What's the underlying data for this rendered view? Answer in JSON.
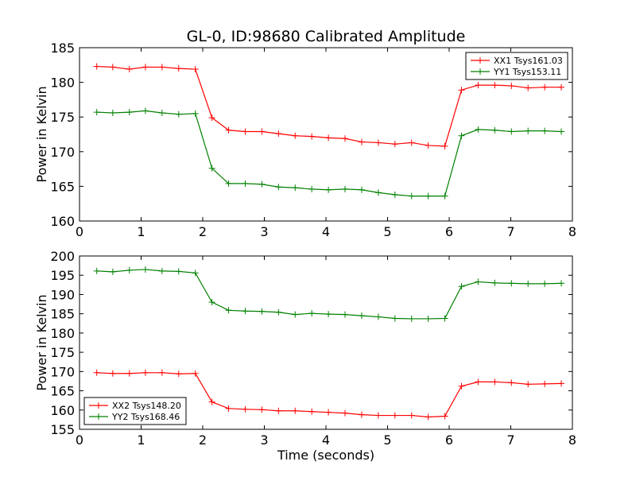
{
  "chart_data": {
    "type": "line",
    "title": "GL-0, ID:98680 Calibrated Amplitude",
    "xlabel": "Time (seconds)",
    "subplots": [
      {
        "ylabel": "Power in Kelvin",
        "xlim": [
          0,
          8
        ],
        "ylim": [
          160,
          185
        ],
        "xticks": [
          "0",
          "1",
          "2",
          "3",
          "4",
          "5",
          "6",
          "7",
          "8"
        ],
        "yticks": [
          "160",
          "165",
          "170",
          "175",
          "180",
          "185"
        ],
        "legend_position": "top-right",
        "x": [
          0.28,
          0.54,
          0.81,
          1.07,
          1.34,
          1.61,
          1.88,
          2.15,
          2.42,
          2.69,
          2.96,
          3.23,
          3.5,
          3.77,
          4.04,
          4.31,
          4.58,
          4.85,
          5.12,
          5.39,
          5.66,
          5.93,
          6.2,
          6.47,
          6.74,
          7.01,
          7.28,
          7.55,
          7.82
        ],
        "series": [
          {
            "name": "XX1 Tsys161.03",
            "color": "#ff0000",
            "values": [
              182.3,
              182.2,
              181.9,
              182.2,
              182.2,
              182.0,
              181.9,
              174.9,
              173.1,
              172.9,
              172.9,
              172.6,
              172.3,
              172.2,
              172.0,
              171.9,
              171.4,
              171.3,
              171.1,
              171.3,
              170.9,
              170.8,
              178.9,
              179.6,
              179.6,
              179.5,
              179.2,
              179.3,
              179.3
            ]
          },
          {
            "name": "YY1 Tsys153.11",
            "color": "#008000",
            "values": [
              175.7,
              175.6,
              175.7,
              175.9,
              175.6,
              175.4,
              175.5,
              167.6,
              165.4,
              165.4,
              165.3,
              164.9,
              164.8,
              164.6,
              164.5,
              164.6,
              164.5,
              164.1,
              163.8,
              163.6,
              163.6,
              163.6,
              172.3,
              173.2,
              173.1,
              172.9,
              173.0,
              173.0,
              172.9
            ]
          }
        ]
      },
      {
        "ylabel": "Power in Kelvin",
        "xlim": [
          0,
          8
        ],
        "ylim": [
          155,
          200
        ],
        "xticks": [
          "0",
          "1",
          "2",
          "3",
          "4",
          "5",
          "6",
          "7",
          "8"
        ],
        "yticks": [
          "155",
          "160",
          "165",
          "170",
          "175",
          "180",
          "185",
          "190",
          "195",
          "200"
        ],
        "legend_position": "bottom-left",
        "x": [
          0.28,
          0.54,
          0.81,
          1.07,
          1.34,
          1.61,
          1.88,
          2.15,
          2.42,
          2.69,
          2.96,
          3.23,
          3.5,
          3.77,
          4.04,
          4.31,
          4.58,
          4.85,
          5.12,
          5.39,
          5.66,
          5.93,
          6.2,
          6.47,
          6.74,
          7.01,
          7.28,
          7.55,
          7.82
        ],
        "series": [
          {
            "name": "XX2 Tsys148.20",
            "color": "#ff0000",
            "values": [
              169.7,
              169.5,
              169.5,
              169.7,
              169.7,
              169.4,
              169.5,
              162.1,
              160.4,
              160.2,
              160.1,
              159.8,
              159.8,
              159.6,
              159.4,
              159.2,
              158.8,
              158.6,
              158.6,
              158.6,
              158.2,
              158.4,
              166.2,
              167.3,
              167.3,
              167.1,
              166.7,
              166.8,
              166.9
            ]
          },
          {
            "name": "YY2 Tsys168.46",
            "color": "#008000",
            "values": [
              196.1,
              195.9,
              196.3,
              196.5,
              196.1,
              196.0,
              195.6,
              188.0,
              185.9,
              185.7,
              185.6,
              185.4,
              184.8,
              185.1,
              184.9,
              184.8,
              184.5,
              184.2,
              183.8,
              183.7,
              183.7,
              183.8,
              192.1,
              193.3,
              193.0,
              192.9,
              192.8,
              192.8,
              192.9
            ]
          }
        ]
      }
    ]
  }
}
